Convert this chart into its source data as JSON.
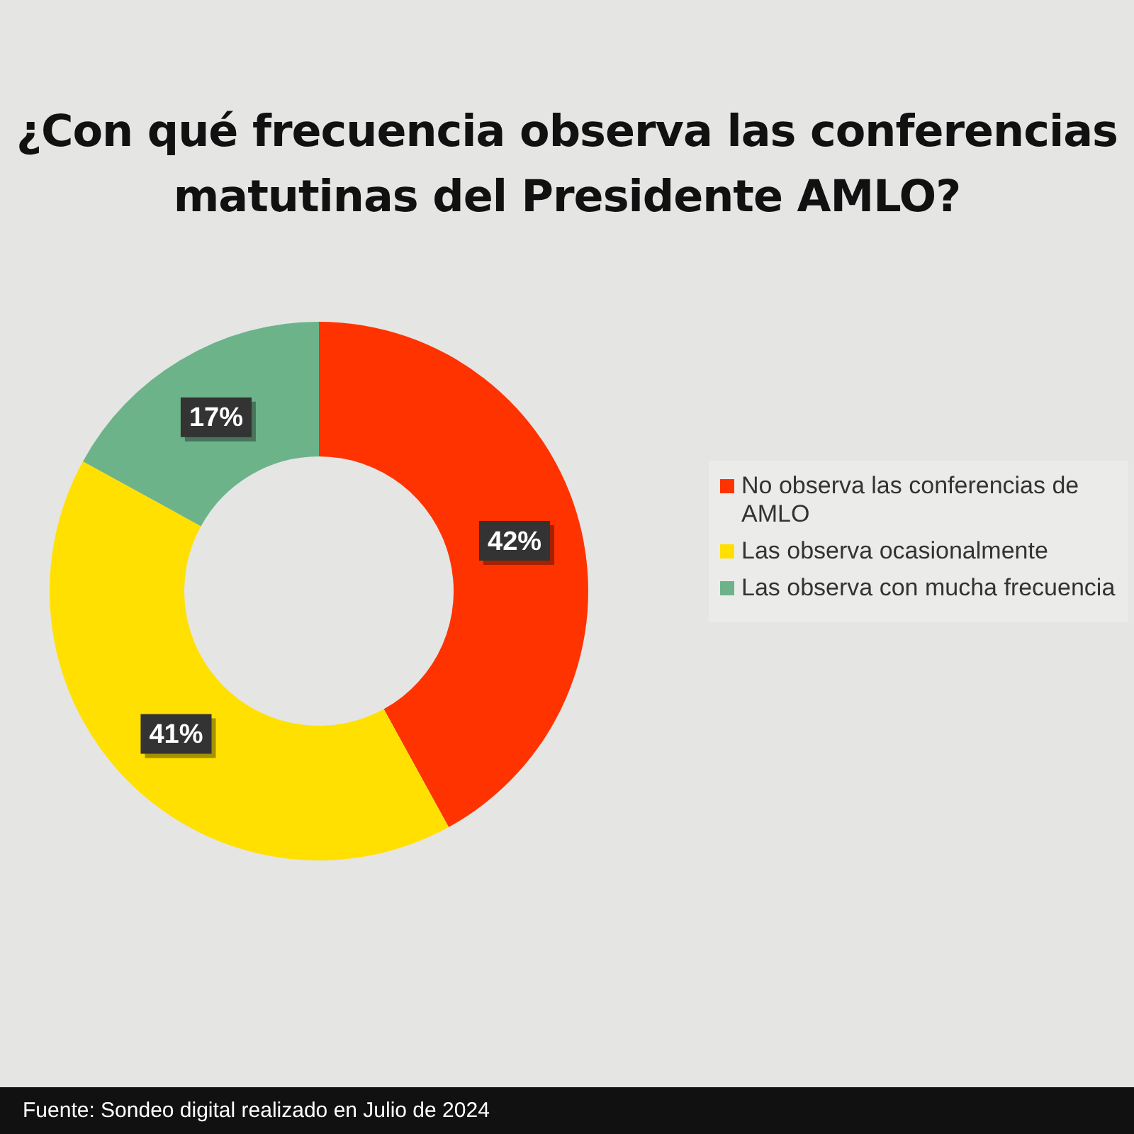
{
  "chart_data": {
    "type": "donut",
    "title": "¿Con qué frecuencia observa las conferencias matutinas del Presidente AMLO?",
    "categories": [
      "No observa las conferencias de AMLO",
      "Las observa ocasionalmente",
      "Las observa con mucha frecuencia"
    ],
    "values": [
      42,
      41,
      17
    ],
    "colors": [
      "#ff3300",
      "#ffe000",
      "#6db38a"
    ],
    "value_labels": [
      "42%",
      "41%",
      "17%"
    ],
    "legend": "right",
    "annotations": [
      "Fuente: Sondeo digital realizado en Julio de 2024"
    ]
  }
}
